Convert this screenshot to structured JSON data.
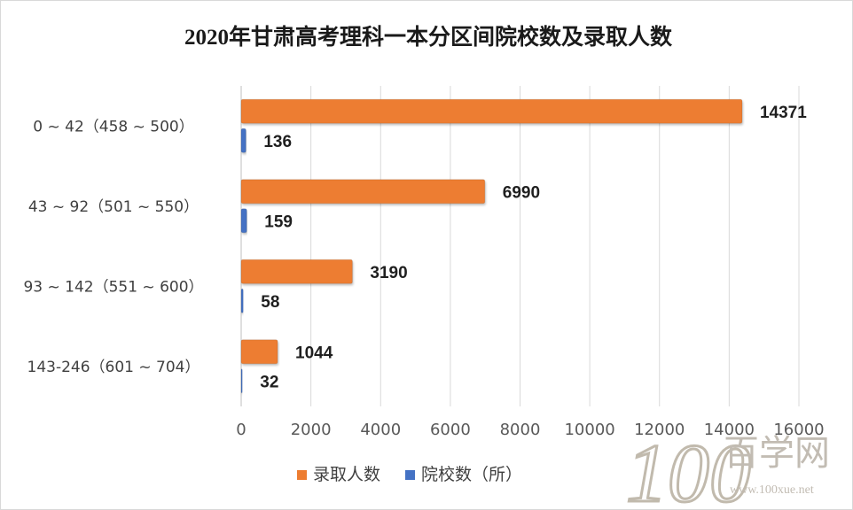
{
  "chart_data": {
    "type": "bar",
    "orientation": "horizontal",
    "title": "2020年甘肃高考理科一本分区间院校数及录取人数",
    "categories": [
      "0 ~ 42（458 ~ 500）",
      "43 ~ 92（501 ~ 550）",
      "93 ~ 142（551 ~ 600）",
      "143-246（601 ~ 704）"
    ],
    "series": [
      {
        "name": "录取人数",
        "values": [
          14371,
          6990,
          3190,
          1044
        ],
        "color": "#ED7D31"
      },
      {
        "name": "院校数（所）",
        "values": [
          136,
          159,
          58,
          32
        ],
        "color": "#4472C4"
      }
    ],
    "xlim": [
      0,
      16000
    ],
    "x_ticks": [
      0,
      2000,
      4000,
      6000,
      8000,
      10000,
      12000,
      14000,
      16000
    ],
    "grid": true,
    "legend_position": "bottom"
  },
  "watermark": {
    "logo_number": "100",
    "brand": "百学网",
    "url": "www.100xue.net"
  }
}
